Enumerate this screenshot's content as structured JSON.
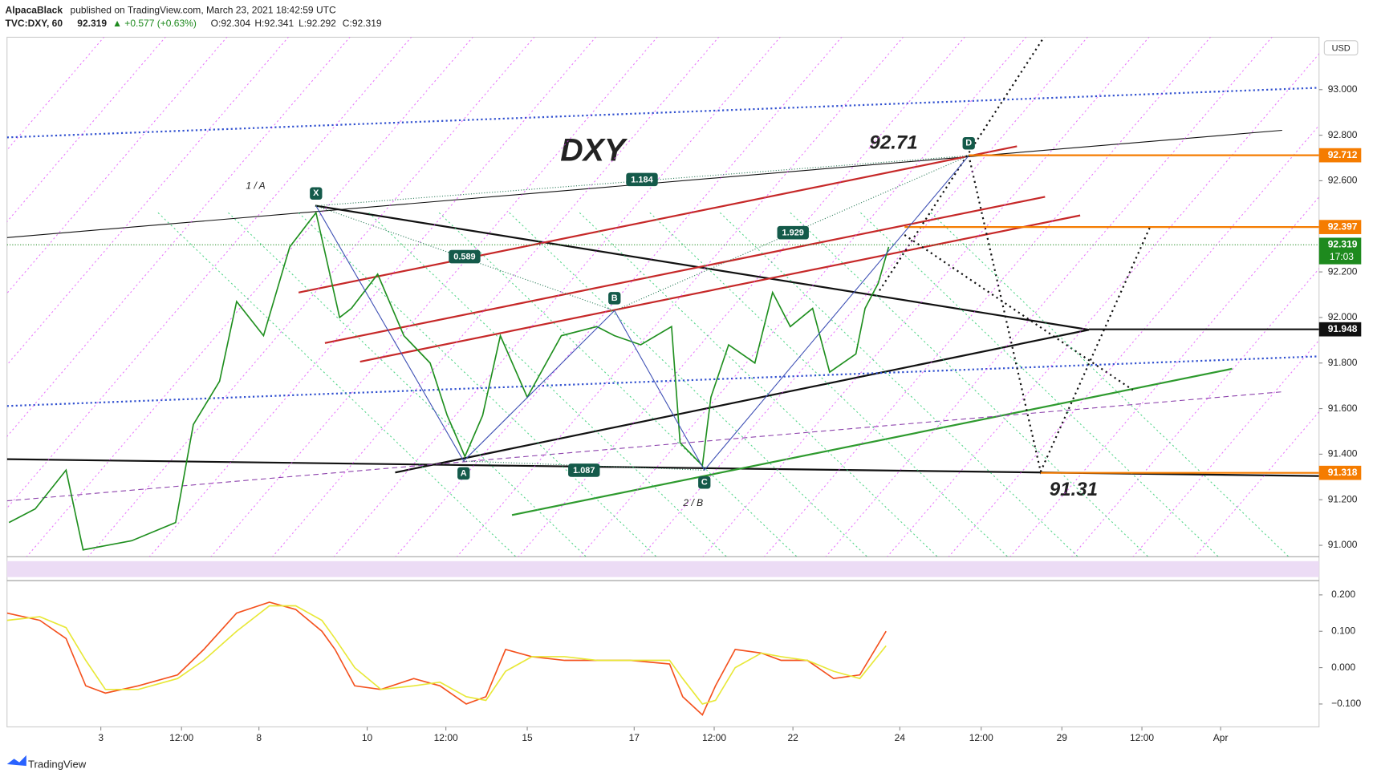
{
  "header": {
    "author": "AlpacaBlack",
    "published": "published on TradingView.com, March 23, 2021 18:42:59 UTC",
    "symbol": "TVC:DXY, 60",
    "last": "92.319",
    "change": "▲ +0.577 (+0.63%)",
    "open": "O:92.304",
    "high": "H:92.341",
    "low": "L:92.292",
    "close": "C:92.319"
  },
  "chart_data": [
    {
      "type": "line",
      "title": "DXY",
      "currency": "USD",
      "color": "#1f8f1f",
      "x": [
        0.3,
        4.3,
        9,
        11.6,
        19,
        25.7,
        28.4,
        32.4,
        35,
        39.1,
        43.1,
        47.1,
        50.7,
        52.5,
        56.5,
        60.5,
        64.5,
        67.1,
        69.8,
        72.5,
        75.2,
        79.3,
        84.5,
        89.9,
        92.6,
        96.6,
        101.3,
        102.6,
        106,
        107.3,
        110,
        114,
        116.7,
        119.4,
        122.8,
        125.4,
        129.4,
        130.8,
        132.8,
        134.4
      ],
      "values": [
        91.1,
        91.16,
        91.33,
        90.98,
        91.02,
        91.1,
        91.53,
        91.72,
        92.07,
        91.92,
        92.31,
        92.46,
        92.0,
        92.04,
        92.19,
        91.92,
        91.8,
        91.57,
        91.39,
        91.57,
        91.92,
        91.65,
        91.92,
        91.96,
        91.92,
        91.88,
        91.96,
        91.45,
        91.35,
        91.65,
        91.88,
        91.8,
        92.11,
        91.96,
        92.04,
        91.76,
        91.84,
        92.04,
        92.15,
        92.31
      ],
      "xlim": [
        0,
        200
      ],
      "xticks": [
        {
          "value": 14.3,
          "label": "3"
        },
        {
          "value": 26.6,
          "label": "12:00"
        },
        {
          "value": 38.4,
          "label": "8"
        },
        {
          "value": 54.9,
          "label": "10"
        },
        {
          "value": 66.9,
          "label": "12:00"
        },
        {
          "value": 79.3,
          "label": "15"
        },
        {
          "value": 95.6,
          "label": "17"
        },
        {
          "value": 107.8,
          "label": "12:00"
        },
        {
          "value": 119.8,
          "label": "22"
        },
        {
          "value": 136.1,
          "label": "24"
        },
        {
          "value": 148.5,
          "label": "12:00"
        },
        {
          "value": 160.8,
          "label": "29"
        },
        {
          "value": 173,
          "label": "12:00"
        },
        {
          "value": 185,
          "label": "Apr"
        }
      ],
      "ylim": [
        90.95,
        93.23
      ],
      "yticks": [
        {
          "value": 91,
          "label": "91.000"
        },
        {
          "value": 91.2,
          "label": "91.200"
        },
        {
          "value": 91.4,
          "label": "91.400"
        },
        {
          "value": 91.6,
          "label": "91.600"
        },
        {
          "value": 91.8,
          "label": "91.800"
        },
        {
          "value": 92,
          "label": "92.000"
        },
        {
          "value": 92.2,
          "label": "92.200"
        },
        {
          "value": 92.4,
          "label": "92.400"
        },
        {
          "value": 92.6,
          "label": "92.600"
        },
        {
          "value": 92.8,
          "label": "92.800"
        },
        {
          "value": 93,
          "label": "93.000"
        }
      ],
      "price_labels": [
        {
          "value": 92.712,
          "color": "#f57c00"
        },
        {
          "value": 92.397,
          "color": "#f57c00"
        },
        {
          "value": 92.319,
          "color": "#1e8a1e",
          "countdown": "17:03"
        },
        {
          "value": 91.948,
          "color": "#111111"
        },
        {
          "value": 91.318,
          "color": "#f57c00"
        }
      ],
      "annotations": [
        "92.71",
        "91.31"
      ],
      "pattern": {
        "points": [
          {
            "label": "X",
            "x": 47.1,
            "y": 92.49
          },
          {
            "label": "A",
            "x": 69.6,
            "y": 91.37
          },
          {
            "label": "B",
            "x": 92.6,
            "y": 92.03
          },
          {
            "label": "C",
            "x": 106.3,
            "y": 91.33
          },
          {
            "label": "D",
            "x": 146.6,
            "y": 92.71
          }
        ],
        "ratios": [
          "0.589",
          "1.087",
          "1.929",
          "1.184"
        ],
        "wave_labels": [
          "1 / A",
          "2 / B"
        ]
      }
    },
    {
      "type": "line",
      "x": [
        0,
        5,
        9,
        12,
        15,
        20,
        26,
        30,
        35,
        40,
        44,
        48,
        50,
        53,
        57,
        62,
        66,
        70,
        73,
        76,
        80,
        85,
        90,
        95,
        101,
        103,
        106,
        108,
        111,
        115,
        118,
        122,
        126,
        130,
        134
      ],
      "series": [
        {
          "color": "#f4511e",
          "values": [
            0.15,
            0.13,
            0.08,
            -0.05,
            -0.07,
            -0.05,
            -0.02,
            0.05,
            0.15,
            0.18,
            0.16,
            0.1,
            0.05,
            -0.05,
            -0.06,
            -0.03,
            -0.05,
            -0.1,
            -0.08,
            0.05,
            0.03,
            0.02,
            0.02,
            0.02,
            0.01,
            -0.08,
            -0.13,
            -0.05,
            0.05,
            0.04,
            0.02,
            0.02,
            -0.03,
            -0.02,
            0.1
          ]
        },
        {
          "color": "#e8e838",
          "values": [
            0.13,
            0.14,
            0.11,
            0.02,
            -0.06,
            -0.06,
            -0.03,
            0.02,
            0.1,
            0.17,
            0.17,
            0.13,
            0.08,
            0.0,
            -0.06,
            -0.05,
            -0.04,
            -0.08,
            -0.09,
            -0.01,
            0.03,
            0.03,
            0.02,
            0.02,
            0.02,
            -0.03,
            -0.1,
            -0.09,
            0.0,
            0.04,
            0.03,
            0.02,
            -0.01,
            -0.03,
            0.06
          ]
        }
      ],
      "xlim": [
        0,
        200
      ],
      "ylim": [
        -0.163,
        0.227
      ],
      "yticks": [
        {
          "value": 0.2,
          "label": "0.200"
        },
        {
          "value": 0.1,
          "label": "0.100"
        },
        {
          "value": 0,
          "label": "0.000"
        },
        {
          "value": -0.1,
          "label": "−0.100"
        }
      ]
    }
  ],
  "footer": {
    "brand": "TradingView"
  }
}
